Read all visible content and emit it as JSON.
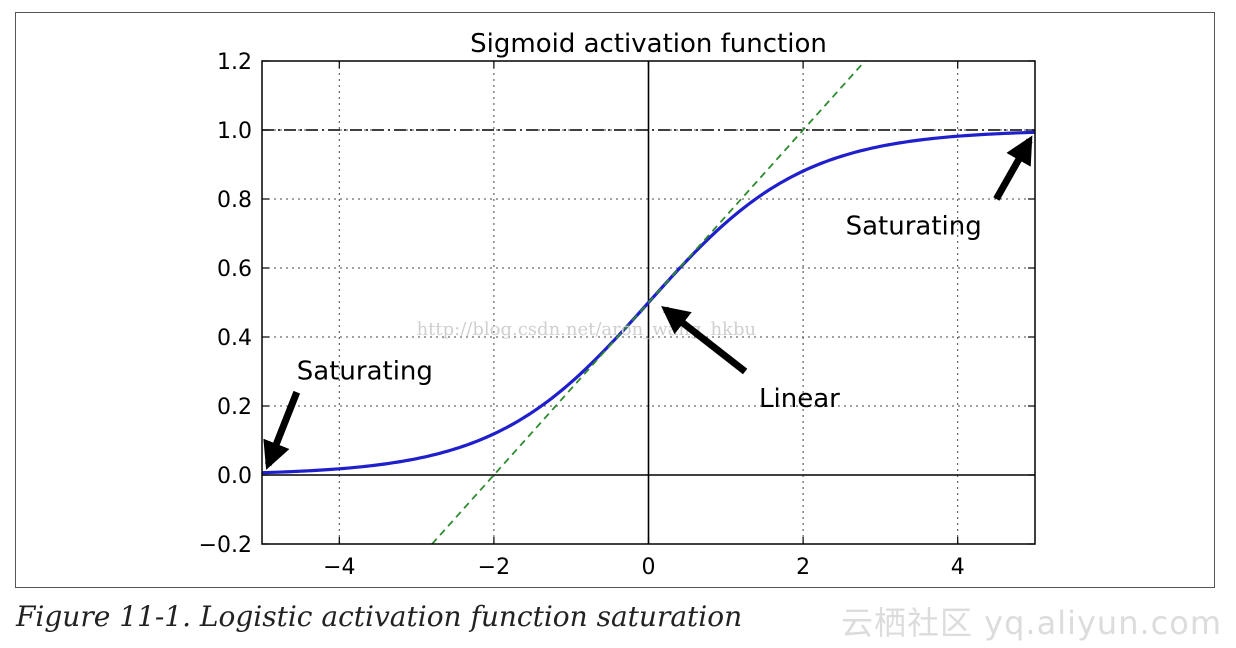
{
  "chart_data": {
    "type": "line",
    "title": "Sigmoid activation function",
    "xlabel": "",
    "ylabel": "",
    "xlim": [
      -5,
      5
    ],
    "ylim": [
      -0.2,
      1.2
    ],
    "xticks": [
      -4,
      -2,
      0,
      2,
      4
    ],
    "xtick_labels": [
      "−4",
      "−2",
      "0",
      "2",
      "4"
    ],
    "yticks": [
      -0.2,
      0.0,
      0.2,
      0.4,
      0.6,
      0.8,
      1.0,
      1.2
    ],
    "ytick_labels": [
      "−0.2",
      "0.0",
      "0.2",
      "0.4",
      "0.6",
      "0.8",
      "1.0",
      "1.2"
    ],
    "grid": true,
    "series": [
      {
        "name": "sigmoid",
        "function": "1/(1+exp(-z))",
        "x": [
          -5,
          -4,
          -3,
          -2,
          -1,
          0,
          1,
          2,
          3,
          4,
          5
        ],
        "values": [
          0.007,
          0.018,
          0.047,
          0.119,
          0.269,
          0.5,
          0.731,
          0.881,
          0.953,
          0.982,
          0.993
        ],
        "color": "#1f1fcc",
        "style": "solid"
      },
      {
        "name": "linear",
        "function": "z/4 + 0.5",
        "x": [
          -2.8,
          2.8
        ],
        "values": [
          -0.2,
          1.2
        ],
        "color": "#2e8b2e",
        "style": "dashed"
      }
    ],
    "reference_lines": [
      {
        "name": "y-one",
        "axis": "y",
        "value": 1.0,
        "style": "dashdot",
        "color": "#000000"
      },
      {
        "name": "y-zero",
        "axis": "y",
        "value": 0.0,
        "style": "solid",
        "color": "#000000"
      },
      {
        "name": "x-zero",
        "axis": "x",
        "value": 0.0,
        "style": "solid",
        "color": "#000000"
      }
    ],
    "annotations": [
      {
        "name": "saturating-left",
        "text": "Saturating",
        "point": [
          -5,
          0.0
        ],
        "text_pos": [
          -4.5,
          0.3
        ]
      },
      {
        "name": "linear",
        "text": "Linear",
        "point": [
          0,
          0.5
        ],
        "text_pos": [
          1.4,
          0.2
        ]
      },
      {
        "name": "saturating-right",
        "text": "Saturating",
        "point": [
          5,
          1.0
        ],
        "text_pos": [
          2.5,
          0.7
        ]
      }
    ]
  },
  "caption": "Figure 11-1. Logistic activation function saturation",
  "overlay_url": "http://blog.csdn.net/aron_wang_hkbu",
  "watermark": "云栖社区 yq.aliyun.com"
}
